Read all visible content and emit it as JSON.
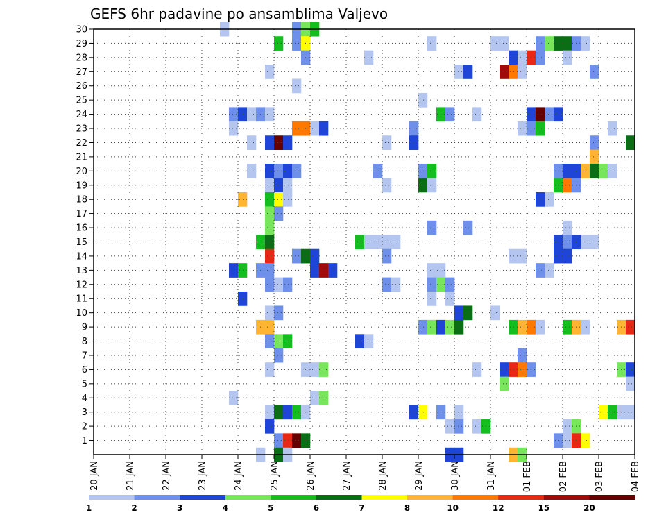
{
  "chart_data": {
    "type": "heatmap",
    "title": "GEFS 6hr padavine po ansamblima Valjevo",
    "x_tick_labels": [
      "20 JAN",
      "21 JAN",
      "22 JAN",
      "23 JAN",
      "24 JAN",
      "25 JAN",
      "26 JAN",
      "27 JAN",
      "28 JAN",
      "29 JAN",
      "30 JAN",
      "31 JAN",
      "01 FEB",
      "02 FEB",
      "03 FEB",
      "04 FEB"
    ],
    "y_tick_labels": [
      "1",
      "2",
      "3",
      "4",
      "5",
      "6",
      "7",
      "8",
      "9",
      "10",
      "11",
      "12",
      "13",
      "14",
      "15",
      "16",
      "17",
      "18",
      "19",
      "20",
      "21",
      "22",
      "23",
      "24",
      "25",
      "26",
      "27",
      "28",
      "29",
      "30"
    ],
    "x_range_steps": [
      0,
      60
    ],
    "steps_per_day": 4,
    "y_range_members": [
      0,
      30
    ],
    "grid": "dotted",
    "legend": {
      "placement": "bottom",
      "colors": [
        "#b4c6f0",
        "#6e90ea",
        "#1e44d8",
        "#78e65a",
        "#14be1e",
        "#0a6e14",
        "#ffff00",
        "#ffb432",
        "#ff7800",
        "#e62814",
        "#a00a0a",
        "#640000"
      ],
      "labels": [
        "1",
        "2",
        "3",
        "4",
        "5",
        "6",
        "7",
        "8",
        "10",
        "12",
        "15",
        "20"
      ]
    },
    "cells": [
      [
        14.5,
        30,
        1
      ],
      [
        22.5,
        30,
        2
      ],
      [
        23.5,
        30,
        4
      ],
      [
        24.5,
        30,
        5
      ],
      [
        20.5,
        29,
        5
      ],
      [
        22.5,
        29,
        2
      ],
      [
        23.5,
        29,
        7
      ],
      [
        37.5,
        29,
        1
      ],
      [
        44.5,
        29,
        1
      ],
      [
        45.5,
        29,
        1
      ],
      [
        49.5,
        29,
        2
      ],
      [
        50.5,
        29,
        4
      ],
      [
        51.5,
        29,
        6
      ],
      [
        52.5,
        29,
        6
      ],
      [
        53.5,
        29,
        2
      ],
      [
        54.5,
        29,
        1
      ],
      [
        23.5,
        28,
        2
      ],
      [
        30.5,
        28,
        1
      ],
      [
        46.5,
        28,
        3
      ],
      [
        47.5,
        28,
        1
      ],
      [
        48.5,
        28,
        10
      ],
      [
        49.5,
        28,
        2
      ],
      [
        52.5,
        28,
        1
      ],
      [
        19.5,
        27,
        1
      ],
      [
        40.5,
        27,
        1
      ],
      [
        41.5,
        27,
        3
      ],
      [
        45.5,
        27,
        11
      ],
      [
        46.5,
        27,
        9
      ],
      [
        47.5,
        27,
        1
      ],
      [
        55.5,
        27,
        2
      ],
      [
        22.5,
        26,
        1
      ],
      [
        36.5,
        25,
        1
      ],
      [
        15.5,
        24,
        2
      ],
      [
        16.5,
        24,
        3
      ],
      [
        17.5,
        24,
        1
      ],
      [
        18.5,
        24,
        2
      ],
      [
        19.5,
        24,
        1
      ],
      [
        38.5,
        24,
        5
      ],
      [
        39.5,
        24,
        2
      ],
      [
        42.5,
        24,
        1
      ],
      [
        48.5,
        24,
        3
      ],
      [
        49.5,
        24,
        12
      ],
      [
        50.5,
        24,
        2
      ],
      [
        51.5,
        24,
        3
      ],
      [
        15.5,
        23,
        1
      ],
      [
        22.5,
        23,
        9
      ],
      [
        23.5,
        23,
        9
      ],
      [
        24.5,
        23,
        1
      ],
      [
        25.5,
        23,
        3
      ],
      [
        35.5,
        23,
        2
      ],
      [
        47.5,
        23,
        1
      ],
      [
        48.5,
        23,
        2
      ],
      [
        49.5,
        23,
        5
      ],
      [
        57.5,
        23,
        1
      ],
      [
        17.5,
        22,
        1
      ],
      [
        19.5,
        22,
        3
      ],
      [
        20.5,
        22,
        12
      ],
      [
        21.5,
        22,
        3
      ],
      [
        32.5,
        22,
        1
      ],
      [
        35.5,
        22,
        3
      ],
      [
        55.5,
        22,
        2
      ],
      [
        59.5,
        22,
        6
      ],
      [
        55.5,
        21,
        8
      ],
      [
        17.5,
        20,
        1
      ],
      [
        19.5,
        20,
        3
      ],
      [
        20.5,
        20,
        2
      ],
      [
        21.5,
        20,
        3
      ],
      [
        22.5,
        20,
        2
      ],
      [
        31.5,
        20,
        2
      ],
      [
        36.5,
        20,
        2
      ],
      [
        37.5,
        20,
        5
      ],
      [
        51.5,
        20,
        2
      ],
      [
        52.5,
        20,
        3
      ],
      [
        53.5,
        20,
        3
      ],
      [
        54.5,
        20,
        8
      ],
      [
        55.5,
        20,
        6
      ],
      [
        56.5,
        20,
        4
      ],
      [
        57.5,
        20,
        1
      ],
      [
        19.5,
        19,
        1
      ],
      [
        20.5,
        19,
        3
      ],
      [
        21.5,
        19,
        1
      ],
      [
        32.5,
        19,
        1
      ],
      [
        36.5,
        19,
        6
      ],
      [
        37.5,
        19,
        1
      ],
      [
        51.5,
        19,
        5
      ],
      [
        52.5,
        19,
        9
      ],
      [
        53.5,
        19,
        2
      ],
      [
        16.5,
        18,
        8
      ],
      [
        19.5,
        18,
        5
      ],
      [
        20.5,
        18,
        7
      ],
      [
        21.5,
        18,
        1
      ],
      [
        49.5,
        18,
        3
      ],
      [
        50.5,
        18,
        1
      ],
      [
        19.5,
        17,
        4
      ],
      [
        20.5,
        17,
        2
      ],
      [
        19.5,
        16,
        4
      ],
      [
        37.5,
        16,
        2
      ],
      [
        41.5,
        16,
        2
      ],
      [
        52.5,
        16,
        1
      ],
      [
        18.5,
        15,
        5
      ],
      [
        19.5,
        15,
        6
      ],
      [
        29.5,
        15,
        5
      ],
      [
        30.5,
        15,
        1
      ],
      [
        31.5,
        15,
        1
      ],
      [
        32.5,
        15,
        1
      ],
      [
        33.5,
        15,
        1
      ],
      [
        51.5,
        15,
        3
      ],
      [
        52.5,
        15,
        2
      ],
      [
        53.5,
        15,
        3
      ],
      [
        54.5,
        15,
        1
      ],
      [
        55.5,
        15,
        1
      ],
      [
        19.5,
        14,
        10
      ],
      [
        22.5,
        14,
        2
      ],
      [
        23.5,
        14,
        6
      ],
      [
        24.5,
        14,
        3
      ],
      [
        32.5,
        14,
        2
      ],
      [
        46.5,
        14,
        1
      ],
      [
        47.5,
        14,
        1
      ],
      [
        51.5,
        14,
        3
      ],
      [
        52.5,
        14,
        3
      ],
      [
        15.5,
        13,
        3
      ],
      [
        16.5,
        13,
        5
      ],
      [
        18.5,
        13,
        2
      ],
      [
        19.5,
        13,
        2
      ],
      [
        24.5,
        13,
        3
      ],
      [
        25.5,
        13,
        11
      ],
      [
        26.5,
        13,
        3
      ],
      [
        37.5,
        13,
        1
      ],
      [
        38.5,
        13,
        1
      ],
      [
        49.5,
        13,
        2
      ],
      [
        50.5,
        13,
        1
      ],
      [
        19.5,
        12,
        2
      ],
      [
        20.5,
        12,
        1
      ],
      [
        21.5,
        12,
        2
      ],
      [
        32.5,
        12,
        2
      ],
      [
        33.5,
        12,
        1
      ],
      [
        37.5,
        12,
        2
      ],
      [
        38.5,
        12,
        4
      ],
      [
        39.5,
        12,
        2
      ],
      [
        16.5,
        11,
        3
      ],
      [
        37.5,
        11,
        1
      ],
      [
        39.5,
        11,
        1
      ],
      [
        19.5,
        10,
        1
      ],
      [
        20.5,
        10,
        2
      ],
      [
        40.5,
        10,
        3
      ],
      [
        41.5,
        10,
        6
      ],
      [
        44.5,
        10,
        1
      ],
      [
        18.5,
        9,
        8
      ],
      [
        19.5,
        9,
        8
      ],
      [
        36.5,
        9,
        2
      ],
      [
        37.5,
        9,
        4
      ],
      [
        38.5,
        9,
        3
      ],
      [
        39.5,
        9,
        4
      ],
      [
        40.5,
        9,
        6
      ],
      [
        46.5,
        9,
        5
      ],
      [
        47.5,
        9,
        8
      ],
      [
        48.5,
        9,
        9
      ],
      [
        49.5,
        9,
        1
      ],
      [
        52.5,
        9,
        5
      ],
      [
        53.5,
        9,
        8
      ],
      [
        54.5,
        9,
        1
      ],
      [
        58.5,
        9,
        8
      ],
      [
        59.5,
        9,
        10
      ],
      [
        19.5,
        8,
        2
      ],
      [
        20.5,
        8,
        4
      ],
      [
        21.5,
        8,
        5
      ],
      [
        29.5,
        8,
        3
      ],
      [
        30.5,
        8,
        1
      ],
      [
        20.5,
        7,
        2
      ],
      [
        47.5,
        7,
        2
      ],
      [
        19.5,
        6,
        1
      ],
      [
        23.5,
        6,
        1
      ],
      [
        24.5,
        6,
        1
      ],
      [
        25.5,
        6,
        4
      ],
      [
        42.5,
        6,
        1
      ],
      [
        45.5,
        6,
        3
      ],
      [
        46.5,
        6,
        10
      ],
      [
        47.5,
        6,
        9
      ],
      [
        48.5,
        6,
        2
      ],
      [
        58.5,
        6,
        4
      ],
      [
        59.5,
        6,
        3
      ],
      [
        45.5,
        5,
        4
      ],
      [
        59.5,
        5,
        1
      ],
      [
        15.5,
        4,
        1
      ],
      [
        24.5,
        4,
        1
      ],
      [
        25.5,
        4,
        4
      ],
      [
        19.5,
        3,
        1
      ],
      [
        20.5,
        3,
        6
      ],
      [
        21.5,
        3,
        3
      ],
      [
        22.5,
        3,
        5
      ],
      [
        23.5,
        3,
        1
      ],
      [
        35.5,
        3,
        3
      ],
      [
        36.5,
        3,
        7
      ],
      [
        38.5,
        3,
        2
      ],
      [
        40.5,
        3,
        1
      ],
      [
        56.5,
        3,
        7
      ],
      [
        57.5,
        3,
        5
      ],
      [
        58.5,
        3,
        1
      ],
      [
        59.5,
        3,
        1
      ],
      [
        19.5,
        2,
        3
      ],
      [
        39.5,
        2,
        1
      ],
      [
        40.5,
        2,
        2
      ],
      [
        42.5,
        2,
        1
      ],
      [
        43.5,
        2,
        5
      ],
      [
        52.5,
        2,
        1
      ],
      [
        53.5,
        2,
        4
      ],
      [
        20.5,
        1,
        2
      ],
      [
        21.5,
        1,
        10
      ],
      [
        22.5,
        1,
        12
      ],
      [
        23.5,
        1,
        6
      ],
      [
        51.5,
        1,
        2
      ],
      [
        52.5,
        1,
        1
      ],
      [
        53.5,
        1,
        10
      ],
      [
        54.5,
        1,
        7
      ],
      [
        18.5,
        0,
        1
      ],
      [
        20.5,
        0,
        6
      ],
      [
        21.5,
        0,
        1
      ],
      [
        39.5,
        0,
        3
      ],
      [
        40.5,
        0,
        3
      ],
      [
        46.5,
        0,
        8
      ],
      [
        47.5,
        0,
        4
      ]
    ]
  }
}
